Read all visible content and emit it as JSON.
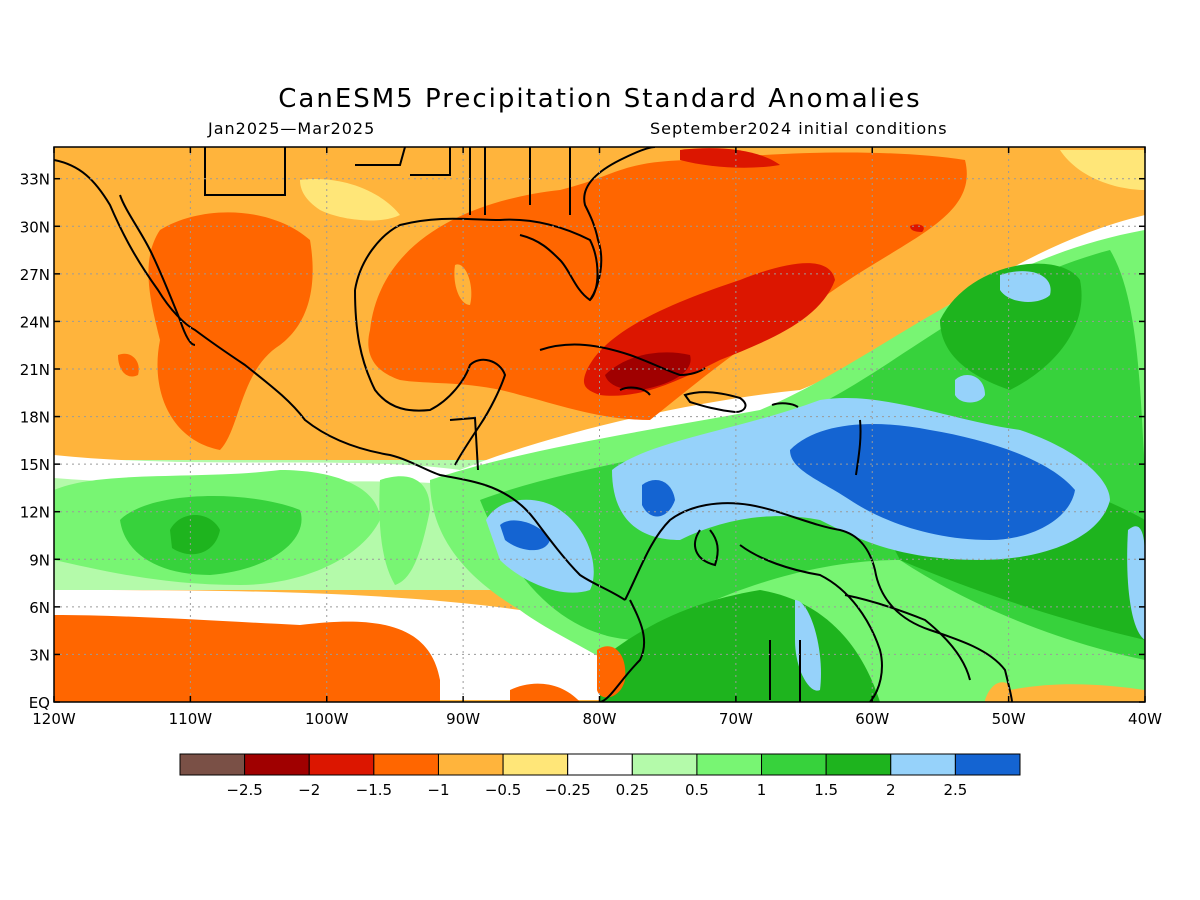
{
  "title": "CanESM5 Precipitation Standard Anomalies",
  "subtitle_left": "Jan2025—Mar2025",
  "subtitle_right": "September2024 initial conditions",
  "map": {
    "lon_range": [
      -120,
      -40
    ],
    "lat_range": [
      0,
      35
    ],
    "lat_ticks": [
      {
        "value": 33,
        "label": "33N"
      },
      {
        "value": 30,
        "label": "30N"
      },
      {
        "value": 27,
        "label": "27N"
      },
      {
        "value": 24,
        "label": "24N"
      },
      {
        "value": 21,
        "label": "21N"
      },
      {
        "value": 18,
        "label": "18N"
      },
      {
        "value": 15,
        "label": "15N"
      },
      {
        "value": 12,
        "label": "12N"
      },
      {
        "value": 9,
        "label": "9N"
      },
      {
        "value": 6,
        "label": "6N"
      },
      {
        "value": 3,
        "label": "3N"
      },
      {
        "value": 0,
        "label": "EQ"
      }
    ],
    "lon_ticks": [
      {
        "value": -120,
        "label": "120W"
      },
      {
        "value": -110,
        "label": "110W"
      },
      {
        "value": -100,
        "label": "100W"
      },
      {
        "value": -90,
        "label": "90W"
      },
      {
        "value": -80,
        "label": "80W"
      },
      {
        "value": -70,
        "label": "70W"
      },
      {
        "value": -60,
        "label": "60W"
      },
      {
        "value": -50,
        "label": "50W"
      },
      {
        "value": -40,
        "label": "40W"
      }
    ],
    "grid_lines": "dotted"
  },
  "colorbar": {
    "colors": [
      "#7a5046",
      "#a00000",
      "#dc1600",
      "#ff6600",
      "#ffb43c",
      "#ffe678",
      "#ffffff",
      "#b4faaa",
      "#78f573",
      "#37d23c",
      "#1eb41e",
      "#96d2fa",
      "#1464d2"
    ],
    "labels": [
      "−2.5",
      "−2",
      "−1.5",
      "−1",
      "−0.5",
      "−0.25",
      "0.25",
      "0.5",
      "1",
      "1.5",
      "2",
      "2.5"
    ]
  }
}
